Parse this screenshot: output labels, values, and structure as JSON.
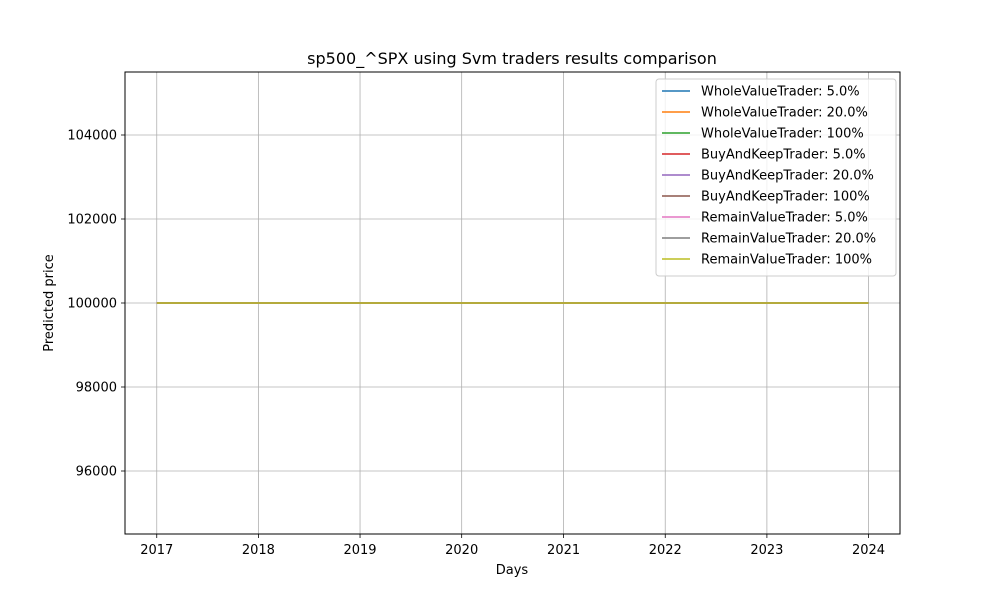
{
  "chart_data": {
    "type": "line",
    "title": "sp500_^SPX using Svm traders results comparison",
    "xlabel": "Days",
    "ylabel": "Predicted price",
    "x": [
      "2017-01-01",
      "2024-01-01"
    ],
    "xticks": [
      "2017",
      "2018",
      "2019",
      "2020",
      "2021",
      "2022",
      "2023",
      "2024"
    ],
    "yticks": [
      "96000",
      "98000",
      "100000",
      "102000",
      "104000"
    ],
    "xlim": [
      "2016-09-09",
      "2024-04-23"
    ],
    "ylim": [
      94500,
      105500
    ],
    "grid": true,
    "legend_position": "upper right",
    "series": [
      {
        "name": "WholeValueTrader: 5.0%",
        "color": "#1f77b4",
        "values": [
          100000,
          100000
        ]
      },
      {
        "name": "WholeValueTrader: 20.0%",
        "color": "#ff7f0e",
        "values": [
          100000,
          100000
        ]
      },
      {
        "name": "WholeValueTrader: 100%",
        "color": "#2ca02c",
        "values": [
          100000,
          100000
        ]
      },
      {
        "name": "BuyAndKeepTrader: 5.0%",
        "color": "#d62728",
        "values": [
          100000,
          100000
        ]
      },
      {
        "name": "BuyAndKeepTrader: 20.0%",
        "color": "#9467bd",
        "values": [
          100000,
          100000
        ]
      },
      {
        "name": "BuyAndKeepTrader: 100%",
        "color": "#8c564b",
        "values": [
          100000,
          100000
        ]
      },
      {
        "name": "RemainValueTrader: 5.0%",
        "color": "#e377c2",
        "values": [
          100000,
          100000
        ]
      },
      {
        "name": "RemainValueTrader: 20.0%",
        "color": "#7f7f7f",
        "values": [
          100000,
          100000
        ]
      },
      {
        "name": "RemainValueTrader: 100%",
        "color": "#bcbd22",
        "values": [
          100000,
          100000
        ]
      }
    ]
  }
}
